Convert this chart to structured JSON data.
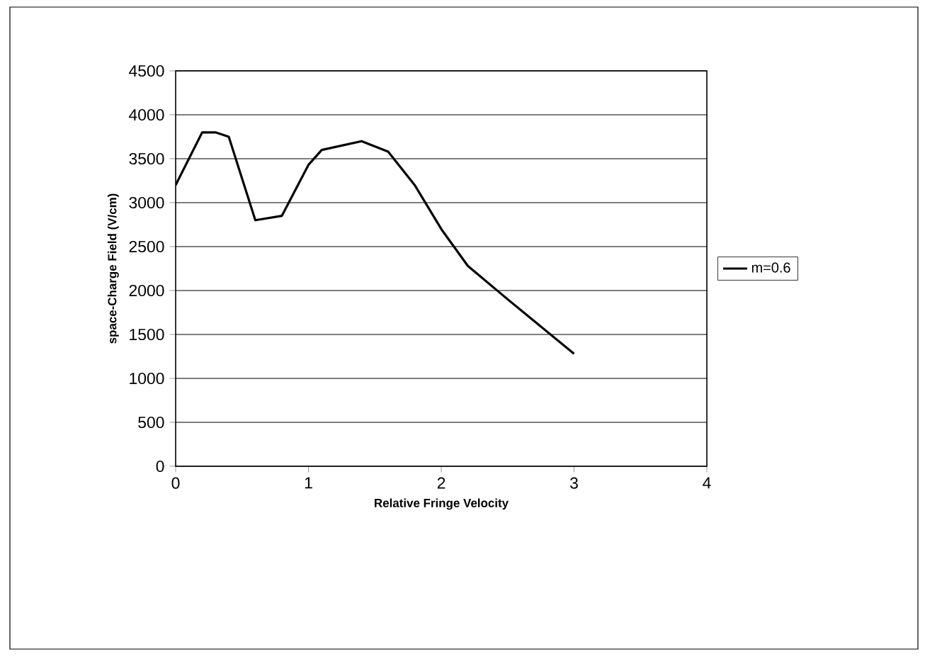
{
  "chart_data": {
    "type": "line",
    "xlabel": "Relative Fringe Velocity",
    "ylabel": "space-Charge Field (V/cm)",
    "xlim": [
      0,
      4
    ],
    "xticks": [
      0,
      1,
      2,
      3,
      4
    ],
    "ylim": [
      0,
      4500
    ],
    "yticks": [
      0,
      500,
      1000,
      1500,
      2000,
      2500,
      3000,
      3500,
      4000,
      4500
    ],
    "grid": "y",
    "legend": "right",
    "marker": "none",
    "line_style": "solid",
    "series": [
      {
        "name": "m=0.6",
        "color": "#000000",
        "x": [
          0,
          0.2,
          0.3,
          0.4,
          0.6,
          0.8,
          1.0,
          1.1,
          1.4,
          1.6,
          1.8,
          2.0,
          2.2,
          2.5,
          3.0
        ],
        "values": [
          3200,
          3800,
          3800,
          3750,
          2800,
          2850,
          3430,
          3600,
          3700,
          3580,
          3200,
          2700,
          2280,
          1900,
          1280
        ]
      }
    ]
  }
}
